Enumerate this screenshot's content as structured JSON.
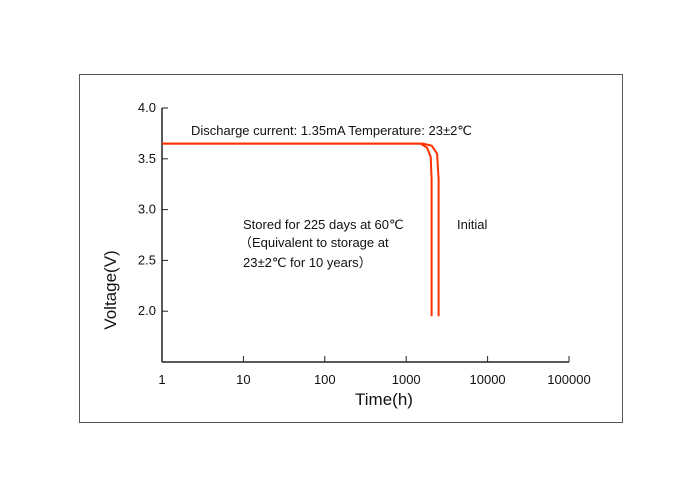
{
  "chart_data": {
    "type": "line",
    "title": "",
    "xlabel": "Time(h)",
    "ylabel": "Voltage(V)",
    "x_scale": "log",
    "xlim": [
      1,
      100000
    ],
    "ylim": [
      1.5,
      4.0
    ],
    "x_ticks": [
      1,
      10,
      100,
      1000,
      10000,
      100000
    ],
    "x_tick_labels": [
      "1",
      "10",
      "100",
      "1000",
      "10000",
      "100000"
    ],
    "y_ticks": [
      2.0,
      2.5,
      3.0,
      3.5,
      4.0
    ],
    "y_tick_labels": [
      "2.0",
      "2.5",
      "3.0",
      "3.5",
      "4.0"
    ],
    "grid": false,
    "annotations": [
      {
        "text": "Discharge current:  1.35mA    Temperature:  23±2℃"
      },
      {
        "text": "Stored for 225 days at 60℃"
      },
      {
        "text": "（Equivalent to storage at"
      },
      {
        "text": "23±2℃  for 10 years）"
      },
      {
        "text": "Initial"
      }
    ],
    "series": [
      {
        "label": "Stored for 225 days at 60℃",
        "color": "#ff3300",
        "points": [
          [
            1,
            3.65
          ],
          [
            1500,
            3.65
          ],
          [
            1800,
            3.61
          ],
          [
            2000,
            3.52
          ],
          [
            2050,
            3.3
          ],
          [
            2050,
            1.95
          ]
        ]
      },
      {
        "label": "Initial",
        "color": "#ff3300",
        "points": [
          [
            1,
            3.65
          ],
          [
            1600,
            3.65
          ],
          [
            2050,
            3.63
          ],
          [
            2400,
            3.55
          ],
          [
            2500,
            3.3
          ],
          [
            2500,
            1.95
          ]
        ]
      }
    ]
  }
}
